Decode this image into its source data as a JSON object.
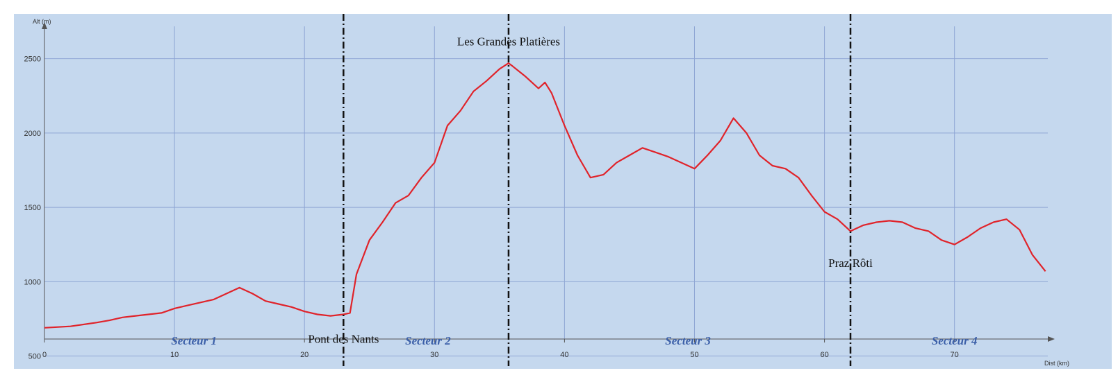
{
  "chart_data": {
    "type": "line",
    "xlabel": "Dist (km)",
    "ylabel": "Alt (m)",
    "xlim": [
      0,
      77.5
    ],
    "ylim": [
      400,
      2750
    ],
    "x_ticks": [
      0,
      10,
      20,
      30,
      40,
      50,
      60,
      70
    ],
    "y_ticks": [
      500,
      1000,
      1500,
      2000,
      2500
    ],
    "grid": true,
    "colors": {
      "plot_background": "#c5d8ee",
      "grid": "#8fa6d4",
      "series": "#e0232a",
      "separator": "#111111",
      "sector_text": "#3b5fa8"
    },
    "series": [
      {
        "x": [
          0,
          2,
          4,
          5,
          6,
          7,
          8,
          9,
          10,
          11,
          12,
          13,
          14,
          15,
          16,
          17,
          18,
          19,
          20,
          21,
          22,
          23,
          23.5,
          24,
          25,
          26,
          27,
          28,
          29,
          30,
          31,
          32,
          33,
          34,
          35,
          35.7,
          36,
          37,
          38,
          38.5,
          39,
          40,
          41,
          42,
          43,
          44,
          45,
          46,
          47,
          48,
          49,
          50,
          51,
          52,
          53,
          54,
          55,
          56,
          57,
          58,
          59,
          60,
          61,
          62,
          63,
          64,
          65,
          66,
          67,
          68,
          69,
          70,
          71,
          72,
          73,
          74,
          75,
          76,
          77
        ],
        "y": [
          690,
          700,
          725,
          740,
          760,
          770,
          780,
          790,
          820,
          840,
          860,
          880,
          920,
          960,
          920,
          870,
          850,
          830,
          800,
          780,
          770,
          780,
          790,
          1050,
          1280,
          1400,
          1530,
          1580,
          1700,
          1800,
          2050,
          2150,
          2280,
          2350,
          2430,
          2470,
          2450,
          2380,
          2300,
          2340,
          2270,
          2050,
          1850,
          1700,
          1720,
          1800,
          1850,
          1900,
          1870,
          1840,
          1800,
          1760,
          1850,
          1950,
          2100,
          2000,
          1850,
          1780,
          1760,
          1700,
          1580,
          1470,
          1420,
          1340,
          1380,
          1400,
          1410,
          1400,
          1360,
          1340,
          1280,
          1250,
          1300,
          1360,
          1400,
          1420,
          1350,
          1180,
          1070
        ]
      }
    ],
    "separators": [
      23,
      35.7,
      62
    ],
    "annotations": [
      {
        "text": "Pont des Nants",
        "x": 23,
        "y": 590
      },
      {
        "text": "Les Grandes Platières",
        "x": 35.7,
        "y": 2590
      },
      {
        "text": "Praz Rôti",
        "x": 62,
        "y": 1100
      }
    ],
    "sectors": [
      {
        "text": "Secteur 1",
        "x": 11.5
      },
      {
        "text": "Secteur 2",
        "x": 29.5
      },
      {
        "text": "Secteur 3",
        "x": 49.5
      },
      {
        "text": "Secteur 4",
        "x": 70
      }
    ]
  }
}
